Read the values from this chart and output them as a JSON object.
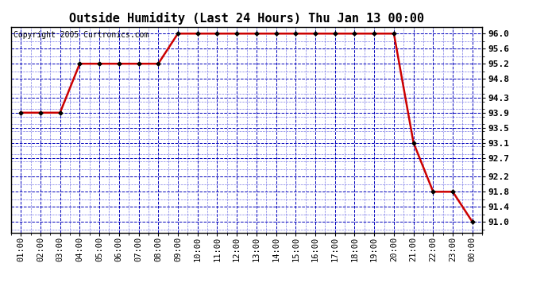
{
  "title": "Outside Humidity (Last 24 Hours) Thu Jan 13 00:00",
  "copyright": "Copyright 2005 Curtronics.com",
  "x_labels": [
    "01:00",
    "02:00",
    "03:00",
    "04:00",
    "05:00",
    "06:00",
    "07:00",
    "08:00",
    "09:00",
    "10:00",
    "11:00",
    "12:00",
    "13:00",
    "14:00",
    "15:00",
    "16:00",
    "17:00",
    "18:00",
    "19:00",
    "20:00",
    "21:00",
    "22:00",
    "23:00",
    "00:00"
  ],
  "y_values": [
    93.9,
    93.9,
    93.9,
    95.2,
    95.2,
    95.2,
    95.2,
    95.2,
    96.0,
    96.0,
    96.0,
    96.0,
    96.0,
    96.0,
    96.0,
    96.0,
    96.0,
    96.0,
    96.0,
    96.0,
    93.1,
    91.8,
    91.8,
    91.0
  ],
  "y_ticks": [
    91.0,
    91.4,
    91.8,
    92.2,
    92.7,
    93.1,
    93.5,
    93.9,
    94.3,
    94.8,
    95.2,
    95.6,
    96.0
  ],
  "ylim": [
    90.72,
    96.18
  ],
  "line_color": "#cc0000",
  "marker_color": "#000000",
  "bg_color": "#ffffff",
  "plot_bg_color": "#ffffff",
  "grid_color_major": "#0000bb",
  "grid_color_minor": "#4444dd",
  "title_fontsize": 11,
  "copyright_fontsize": 7,
  "tick_fontsize": 7.5,
  "ytick_fontsize": 8
}
